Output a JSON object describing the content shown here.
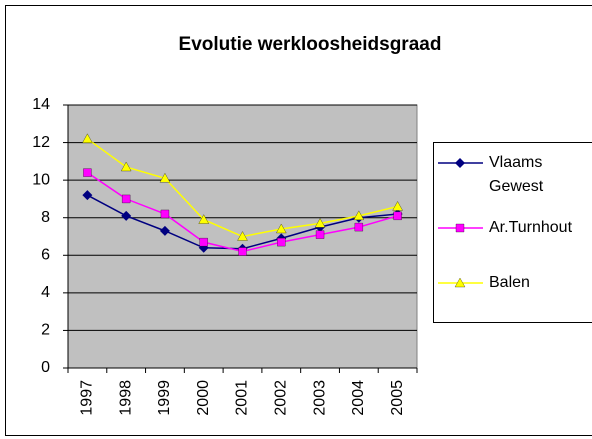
{
  "chart_data": {
    "type": "line",
    "title": "Evolutie werkloosheidsgraad",
    "categories": [
      "1997",
      "1998",
      "1999",
      "2000",
      "2001",
      "2002",
      "2003",
      "2004",
      "2005"
    ],
    "series": [
      {
        "name": "Vlaams Gewest",
        "color": "#000080",
        "marker": "diamond",
        "values": [
          9.2,
          8.1,
          7.3,
          6.4,
          6.35,
          6.9,
          7.5,
          8.0,
          8.2
        ]
      },
      {
        "name": "Ar.Turnhout",
        "color": "#ff00ff",
        "marker": "square",
        "values": [
          10.4,
          9.0,
          8.2,
          6.7,
          6.2,
          6.7,
          7.1,
          7.5,
          8.1
        ]
      },
      {
        "name": "Balen",
        "color": "#ffff00",
        "marker": "triangle",
        "values": [
          12.2,
          10.7,
          10.1,
          7.9,
          7.0,
          7.4,
          7.7,
          8.1,
          8.6
        ]
      }
    ],
    "ylim": [
      0,
      14
    ],
    "yticks": [
      0,
      2,
      4,
      6,
      8,
      10,
      12,
      14
    ],
    "grid": true,
    "legend": "right"
  }
}
